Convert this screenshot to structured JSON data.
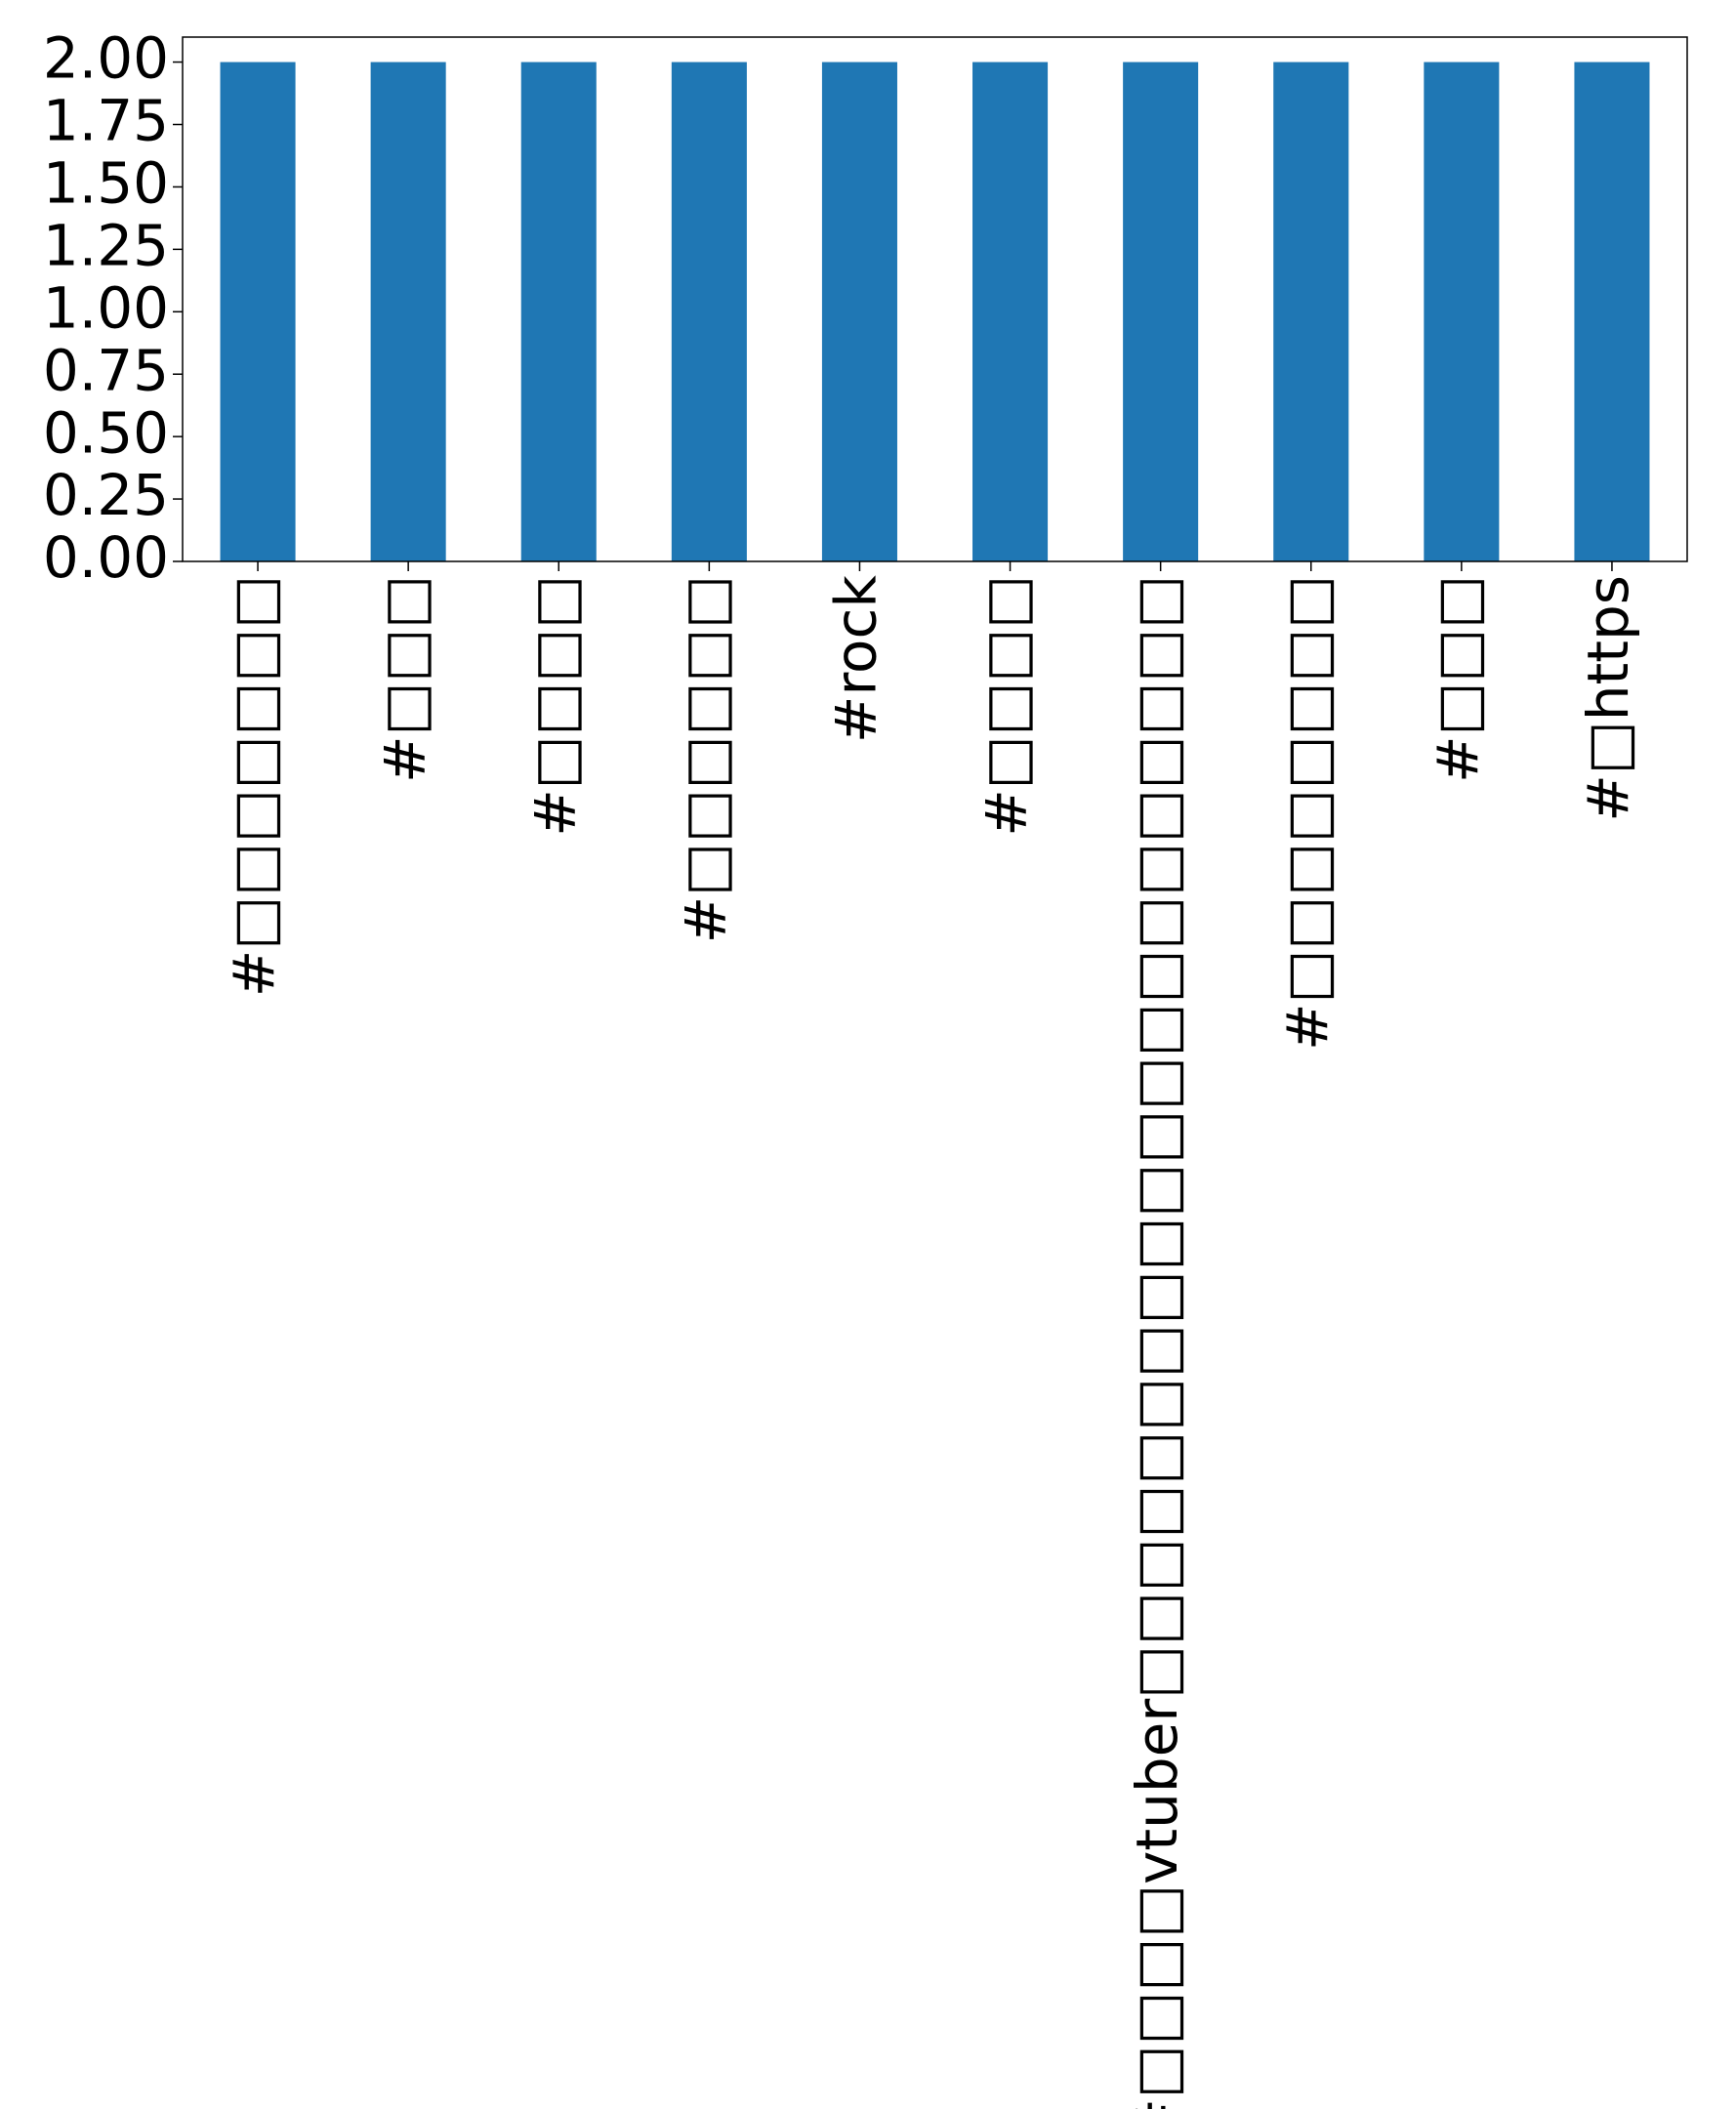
{
  "chart_data": {
    "type": "bar",
    "categories": [
      "#□□□□□□□",
      "#□□□",
      "#□□□□",
      "#□□□□□□",
      "#rock",
      "#□□□□",
      "#□□□□vtuber□□□□□□□□□□□□□□□□□□□□□",
      "#□□□□□□□□",
      "#□□□",
      "#□https"
    ],
    "values": [
      2,
      2,
      2,
      2,
      2,
      2,
      2,
      2,
      2,
      2
    ],
    "color": "#1f77b4",
    "ylim": [
      0,
      2.1
    ],
    "yticks": [
      {
        "value": 0,
        "label": "0.00"
      },
      {
        "value": 0.25,
        "label": "0.25"
      },
      {
        "value": 0.5,
        "label": "0.50"
      },
      {
        "value": 0.75,
        "label": "0.75"
      },
      {
        "value": 1,
        "label": "1.00"
      },
      {
        "value": 1.25,
        "label": "1.25"
      },
      {
        "value": 1.5,
        "label": "1.50"
      },
      {
        "value": 1.75,
        "label": "1.75"
      },
      {
        "value": 2,
        "label": "2.00"
      }
    ],
    "grid": false
  }
}
